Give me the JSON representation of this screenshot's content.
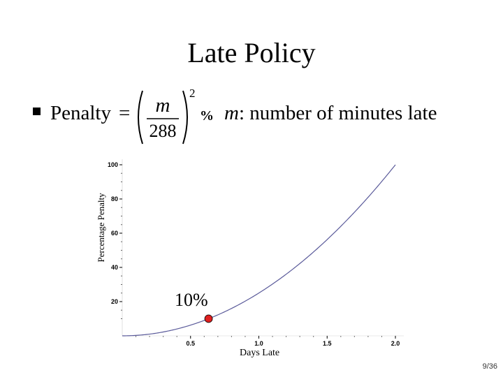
{
  "slide": {
    "title": "Late Policy",
    "page_number": "9/36"
  },
  "bullet": {
    "label": "Penalty",
    "equals": "=",
    "numerator": "m",
    "denominator": "288",
    "exponent": "2",
    "unit": "%",
    "definition_var": "m",
    "definition_text": ": number of minutes late"
  },
  "chart_data": {
    "type": "line",
    "xlabel": "Days Late",
    "ylabel": "Percentage Penalty",
    "xlim": [
      0,
      2.05
    ],
    "ylim": [
      0,
      100
    ],
    "x_ticks": [
      0.5,
      1.0,
      1.5,
      2.0
    ],
    "x_tick_labels": [
      "0.5",
      "1.0",
      "1.5",
      "2.0"
    ],
    "y_ticks": [
      20,
      40,
      60,
      80,
      100
    ],
    "y_tick_labels": [
      "20",
      "40",
      "60",
      "80",
      "100"
    ],
    "series": [
      {
        "x": [
          0,
          0.1,
          0.2,
          0.3,
          0.4,
          0.5,
          0.6,
          0.7,
          0.8,
          0.9,
          1.0,
          1.1,
          1.2,
          1.3,
          1.4,
          1.5,
          1.6,
          1.7,
          1.8,
          1.9,
          2.0
        ],
        "values": [
          0,
          0.25,
          1,
          2.25,
          4,
          6.25,
          9,
          12.25,
          16,
          20.25,
          25,
          30.25,
          36,
          42.25,
          49,
          56.25,
          64,
          72.25,
          81,
          90.25,
          100
        ],
        "color": "#5a5a9a"
      }
    ],
    "highlight_point": {
      "x": 0.632,
      "y": 10,
      "color": "#e02020"
    },
    "annotation": "10%",
    "grid": false
  }
}
